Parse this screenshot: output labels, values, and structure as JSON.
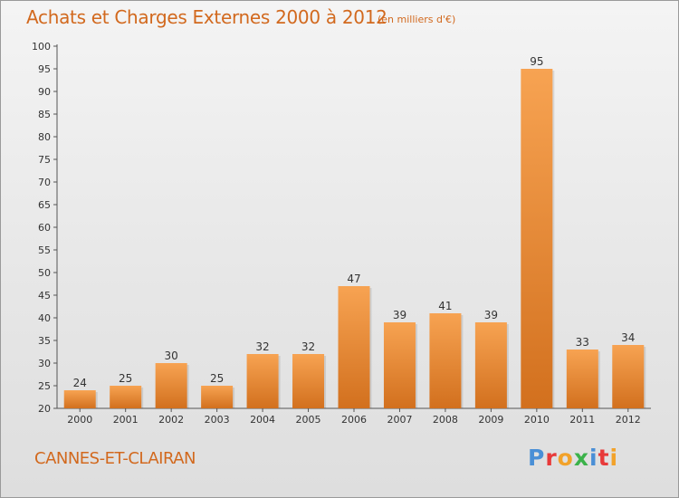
{
  "header": {
    "title": "Achats et Charges Externes 2000 à 2012",
    "unit": "(en milliers d'€)"
  },
  "footer": {
    "place": "CANNES-ET-CLAIRAN",
    "logo": "Proxiti"
  },
  "colors": {
    "accent_text": "#d2691e",
    "bar_top": "#f7a352",
    "bar_bottom": "#d2701e",
    "logo_letters": [
      "#4a8fd6",
      "#e83a3a",
      "#f2a22a",
      "#3bb24a",
      "#4a8fd6",
      "#e83a3a",
      "#f2a22a"
    ]
  },
  "chart_data": {
    "type": "bar",
    "title": "Achats et Charges Externes 2000 à 2012",
    "xlabel": "",
    "ylabel": "",
    "categories": [
      "2000",
      "2001",
      "2002",
      "2003",
      "2004",
      "2005",
      "2006",
      "2007",
      "2008",
      "2009",
      "2010",
      "2011",
      "2012"
    ],
    "values": [
      24,
      25,
      30,
      25,
      32,
      32,
      47,
      39,
      41,
      39,
      95,
      33,
      34
    ],
    "ylim": [
      20,
      100
    ],
    "yticks": [
      20,
      25,
      30,
      35,
      40,
      45,
      50,
      55,
      60,
      65,
      70,
      75,
      80,
      85,
      90,
      95,
      100
    ],
    "grid": false,
    "data_labels": true
  }
}
